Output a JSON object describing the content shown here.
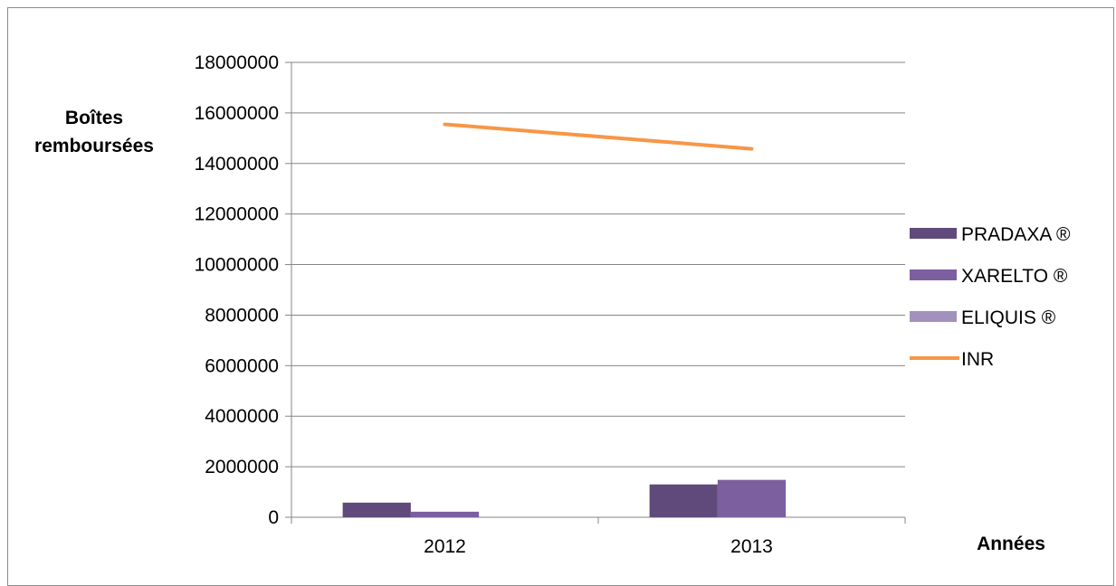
{
  "chart_data": {
    "type": "bar",
    "categories": [
      "2012",
      "2013"
    ],
    "series": [
      {
        "name": "PRADAXA ®",
        "kind": "bar",
        "color": "#604a7b",
        "values": [
          580000,
          1300000
        ]
      },
      {
        "name": "XARELTO ®",
        "kind": "bar",
        "color": "#7b5f9e",
        "values": [
          220000,
          1480000
        ]
      },
      {
        "name": "ELIQUIS ®",
        "kind": "bar",
        "color": "#a391bd",
        "values": [
          0,
          0
        ]
      },
      {
        "name": "INR",
        "kind": "line",
        "color": "#f79646",
        "values": [
          15550000,
          14580000
        ]
      }
    ],
    "yticks": [
      "0",
      "2000000",
      "4000000",
      "6000000",
      "8000000",
      "10000000",
      "12000000",
      "14000000",
      "16000000",
      "18000000"
    ],
    "ylim": [
      0,
      18000000
    ],
    "ylabel_line1": "Boîtes",
    "ylabel_line2": "remboursées",
    "xlabel": "Années",
    "legend_position": "right",
    "grid": true,
    "gridline_color": "#868686"
  }
}
